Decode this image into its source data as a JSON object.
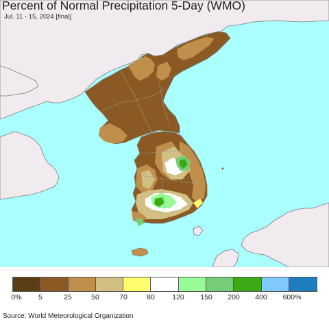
{
  "title": "Percent of Normal Precipitation 5-Day (WMO)",
  "subtitle": "Jul. 11 - 15, 2024 [final]",
  "source": "Source: World Meteorological Organization",
  "colors": {
    "sea": "#aaffff",
    "land_outside": "#f1eaee",
    "border": "#999999"
  },
  "legend": {
    "colors": [
      "#5a3e14",
      "#8b5a24",
      "#c08f4b",
      "#d1bf84",
      "#ffff6e",
      "#ffffff",
      "#98fb98",
      "#77cd77",
      "#3caa14",
      "#80c9ff",
      "#1e7dbd"
    ],
    "labels": [
      "0%",
      "5",
      "25",
      "50",
      "70",
      "80",
      "120",
      "150",
      "200",
      "400",
      "600%"
    ]
  }
}
